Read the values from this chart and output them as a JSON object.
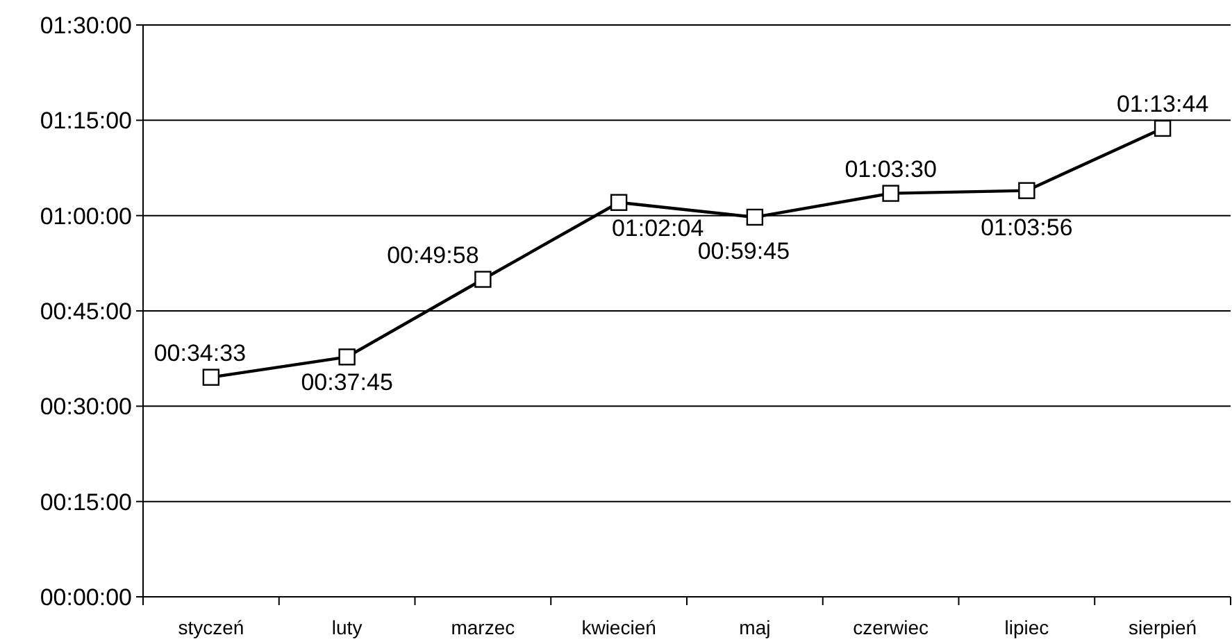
{
  "chart_data": {
    "type": "line",
    "categories": [
      "styczeń",
      "luty",
      "marzec",
      "kwiecień",
      "maj",
      "czerwiec",
      "lipiec",
      "sierpień"
    ],
    "series": [
      {
        "color": "#000000",
        "values": [
          34.55,
          37.75,
          49.9667,
          62.0667,
          59.75,
          63.5,
          63.9333,
          73.7333
        ],
        "value_labels": [
          "00:34:33",
          "00:37:45",
          "00:49:58",
          "01:02:04",
          "00:59:45",
          "01:03:30",
          "01:03:56",
          "01:13:44"
        ]
      }
    ],
    "ylim": [
      0,
      90
    ],
    "yticks": [
      {
        "value": 0,
        "label": "00:00:00"
      },
      {
        "value": 15,
        "label": "00:15:00"
      },
      {
        "value": 30,
        "label": "00:30:00"
      },
      {
        "value": 45,
        "label": "00:45:00"
      },
      {
        "value": 60,
        "label": "01:00:00"
      },
      {
        "value": 75,
        "label": "01:15:00"
      },
      {
        "value": 90,
        "label": "01:30:00"
      }
    ],
    "grid": "y",
    "marker": "square",
    "line_style": "solid"
  }
}
